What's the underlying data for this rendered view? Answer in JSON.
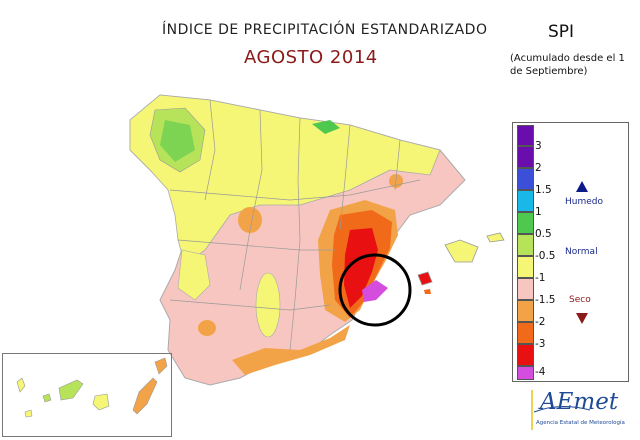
{
  "title": "ÍNDICE DE PRECIPITACIÓN ESTANDARIZADO",
  "subtitle": "AGOSTO 2014",
  "spi_label": "SPI",
  "accumulation_note": "(Acumulado desde el 1 de Septiembre)",
  "legend": {
    "items": [
      {
        "label": "3",
        "color": "#6a0dad"
      },
      {
        "label": "2",
        "color": "#3b4fd8"
      },
      {
        "label": "1.5",
        "color": "#19b8e8"
      },
      {
        "label": "1",
        "color": "#4fc84f"
      },
      {
        "label": "0.5",
        "color": "#b7e35a"
      },
      {
        "label": "-0.5",
        "color": "#f5f576"
      },
      {
        "label": "-1",
        "color": "#f7c6c0"
      },
      {
        "label": "-1.5",
        "color": "#f3a347"
      },
      {
        "label": "-2",
        "color": "#f06a1a"
      },
      {
        "label": "-3",
        "color": "#e81010"
      },
      {
        "label": "-4",
        "color": "#d54ddf"
      }
    ],
    "top_color": "#6a0dad",
    "humid_label": "Humedo",
    "normal_label": "Normal",
    "dry_label": "Seco"
  },
  "logo": {
    "name": "AEmet",
    "tagline": "Agencia Estatal de Meteorología"
  }
}
